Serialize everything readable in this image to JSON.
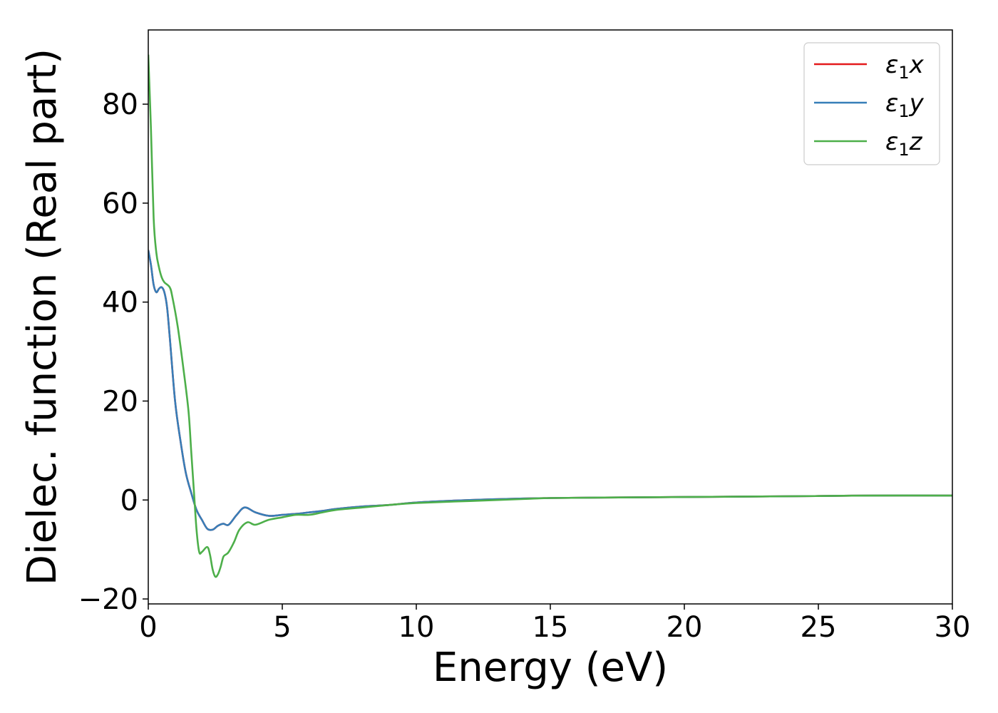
{
  "chart_data": {
    "type": "line",
    "xlabel": "Energy (eV)",
    "ylabel": "Dielec. function (Real part)",
    "xlim": [
      0,
      30
    ],
    "ylim": [
      -21,
      95
    ],
    "xticks": [
      0,
      5,
      10,
      15,
      20,
      25,
      30
    ],
    "xtick_labels": [
      "0",
      "5",
      "10",
      "15",
      "20",
      "25",
      "30"
    ],
    "yticks": [
      -20,
      0,
      20,
      40,
      60,
      80
    ],
    "ytick_labels": [
      "−20",
      "0",
      "20",
      "40",
      "60",
      "80"
    ],
    "grid": false,
    "legend_position": "top-right",
    "series": [
      {
        "name": "ε",
        "subscript": "1",
        "suffix": "x",
        "color": "#e41a1c",
        "x": [
          0,
          0.1,
          0.2,
          0.3,
          0.4,
          0.5,
          0.6,
          0.7,
          0.8,
          1.0,
          1.2,
          1.4,
          1.6,
          1.8,
          2.0,
          2.2,
          2.4,
          2.6,
          2.8,
          3.0,
          3.3,
          3.6,
          4.0,
          4.5,
          5.0,
          5.5,
          6.0,
          6.5,
          7.0,
          8.0,
          9.0,
          10.0,
          12.0,
          14.0,
          15.0,
          17.0,
          20.0,
          25.0,
          27.0,
          30.0
        ],
        "y": [
          50.5,
          47.5,
          43.5,
          42.0,
          42.7,
          43.0,
          42.0,
          39.0,
          33.0,
          20.0,
          12.0,
          5.5,
          1.5,
          -2.0,
          -4.0,
          -5.8,
          -6.0,
          -5.2,
          -4.8,
          -5.0,
          -3.0,
          -1.5,
          -2.5,
          -3.2,
          -3.0,
          -2.8,
          -2.5,
          -2.2,
          -1.8,
          -1.3,
          -1.0,
          -0.5,
          0.0,
          0.3,
          0.4,
          0.5,
          0.6,
          0.8,
          0.9,
          0.9
        ]
      },
      {
        "name": "ε",
        "subscript": "1",
        "suffix": "y",
        "color": "#377eb8",
        "x": [
          0,
          0.1,
          0.2,
          0.3,
          0.4,
          0.5,
          0.6,
          0.7,
          0.8,
          1.0,
          1.2,
          1.4,
          1.6,
          1.8,
          2.0,
          2.2,
          2.4,
          2.6,
          2.8,
          3.0,
          3.3,
          3.6,
          4.0,
          4.5,
          5.0,
          5.5,
          6.0,
          6.5,
          7.0,
          8.0,
          9.0,
          10.0,
          12.0,
          14.0,
          15.0,
          17.0,
          20.0,
          25.0,
          27.0,
          30.0
        ],
        "y": [
          50.5,
          47.5,
          43.5,
          42.0,
          42.7,
          43.0,
          42.0,
          39.0,
          33.0,
          20.0,
          12.0,
          5.5,
          1.5,
          -2.0,
          -4.0,
          -5.8,
          -6.0,
          -5.2,
          -4.8,
          -5.0,
          -3.0,
          -1.5,
          -2.5,
          -3.2,
          -3.0,
          -2.8,
          -2.5,
          -2.2,
          -1.8,
          -1.3,
          -1.0,
          -0.5,
          0.0,
          0.3,
          0.4,
          0.5,
          0.6,
          0.8,
          0.9,
          0.9
        ]
      },
      {
        "name": "ε",
        "subscript": "1",
        "suffix": "z",
        "color": "#4daf4a",
        "x": [
          0,
          0.1,
          0.2,
          0.3,
          0.4,
          0.5,
          0.6,
          0.8,
          0.9,
          1.1,
          1.3,
          1.5,
          1.6,
          1.7,
          1.8,
          1.9,
          2.0,
          2.2,
          2.3,
          2.4,
          2.5,
          2.6,
          2.7,
          2.8,
          2.9,
          3.0,
          3.2,
          3.4,
          3.7,
          4.0,
          4.5,
          5.0,
          5.5,
          6.0,
          6.5,
          7.0,
          8.0,
          9.0,
          10.0,
          12.0,
          14.0,
          15.0,
          17.0,
          20.0,
          25.0,
          27.0,
          30.0
        ],
        "y": [
          90.0,
          75.0,
          57.0,
          50.0,
          47.0,
          45.0,
          44.0,
          43.0,
          41.0,
          35.0,
          27.0,
          18.0,
          10.0,
          2.0,
          -6.0,
          -10.5,
          -10.5,
          -9.5,
          -11.0,
          -14.0,
          -15.5,
          -15.0,
          -13.5,
          -11.5,
          -11.0,
          -10.5,
          -8.5,
          -6.0,
          -4.5,
          -5.0,
          -4.0,
          -3.5,
          -3.0,
          -3.0,
          -2.5,
          -2.0,
          -1.5,
          -1.0,
          -0.6,
          -0.2,
          0.2,
          0.4,
          0.5,
          0.6,
          0.8,
          0.9,
          0.9
        ]
      }
    ]
  }
}
